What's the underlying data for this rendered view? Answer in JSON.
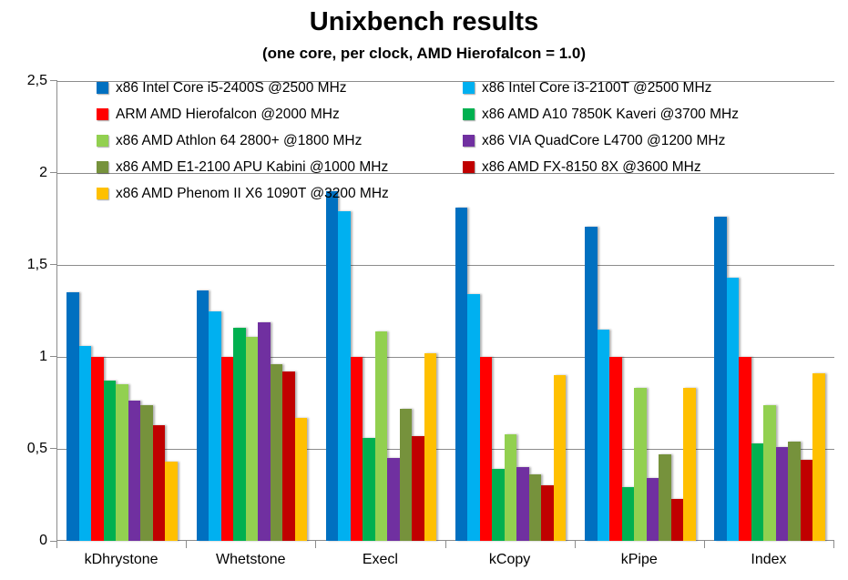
{
  "chart_data": {
    "type": "bar",
    "title": "Unixbench results",
    "subtitle": "(one core, per clock, AMD Hierofalcon = 1.0)",
    "categories": [
      "kDhrystone",
      "Whetstone",
      "Execl",
      "kCopy",
      "kPipe",
      "Index"
    ],
    "series": [
      {
        "name": "x86 Intel Core i5-2400S @2500 MHz",
        "color": "#0070C0",
        "values": [
          1.35,
          1.36,
          1.9,
          1.81,
          1.71,
          1.76
        ]
      },
      {
        "name": "x86 Intel Core i3-2100T @2500 MHz",
        "color": "#00B0F0",
        "values": [
          1.06,
          1.25,
          1.79,
          1.34,
          1.15,
          1.43
        ]
      },
      {
        "name": "ARM AMD Hierofalcon @2000 MHz",
        "color": "#FF0000",
        "values": [
          1.0,
          1.0,
          1.0,
          1.0,
          1.0,
          1.0
        ]
      },
      {
        "name": "x86 AMD A10 7850K Kaveri @3700 MHz",
        "color": "#00B050",
        "values": [
          0.87,
          1.16,
          0.56,
          0.39,
          0.29,
          0.53
        ]
      },
      {
        "name": "x86 AMD Athlon 64 2800+ @1800 MHz",
        "color": "#92D050",
        "values": [
          0.85,
          1.11,
          1.14,
          0.58,
          0.83,
          0.74
        ]
      },
      {
        "name": "x86 VIA QuadCore L4700 @1200 MHz",
        "color": "#7030A0",
        "values": [
          0.76,
          1.19,
          0.45,
          0.4,
          0.34,
          0.51
        ]
      },
      {
        "name": "x86 AMD E1-2100 APU Kabini @1000 MHz",
        "color": "#76923C",
        "values": [
          0.74,
          0.96,
          0.72,
          0.36,
          0.47,
          0.54
        ]
      },
      {
        "name": "x86 AMD FX-8150 8X @3600 MHz",
        "color": "#C00000",
        "values": [
          0.63,
          0.92,
          0.57,
          0.3,
          0.23,
          0.44
        ]
      },
      {
        "name": "x86 AMD Phenom II X6 1090T @3200 MHz",
        "color": "#FFC000",
        "values": [
          0.43,
          0.67,
          1.02,
          0.9,
          0.83,
          0.91
        ]
      }
    ],
    "ylim": [
      0,
      2.5
    ],
    "yticks": [
      {
        "label": "0",
        "value": 0
      },
      {
        "label": "0,5",
        "value": 0.5
      },
      {
        "label": "1",
        "value": 1
      },
      {
        "label": "1,5",
        "value": 1.5
      },
      {
        "label": "2",
        "value": 2
      },
      {
        "label": "2,5",
        "value": 2.5
      }
    ],
    "grid": true,
    "legend_position": "top-inside-two-columns",
    "colors": {
      "gridline": "#8C8C8C",
      "axis": "#8C8C8C",
      "text": "#000000",
      "background": "#FFFFFF"
    }
  }
}
